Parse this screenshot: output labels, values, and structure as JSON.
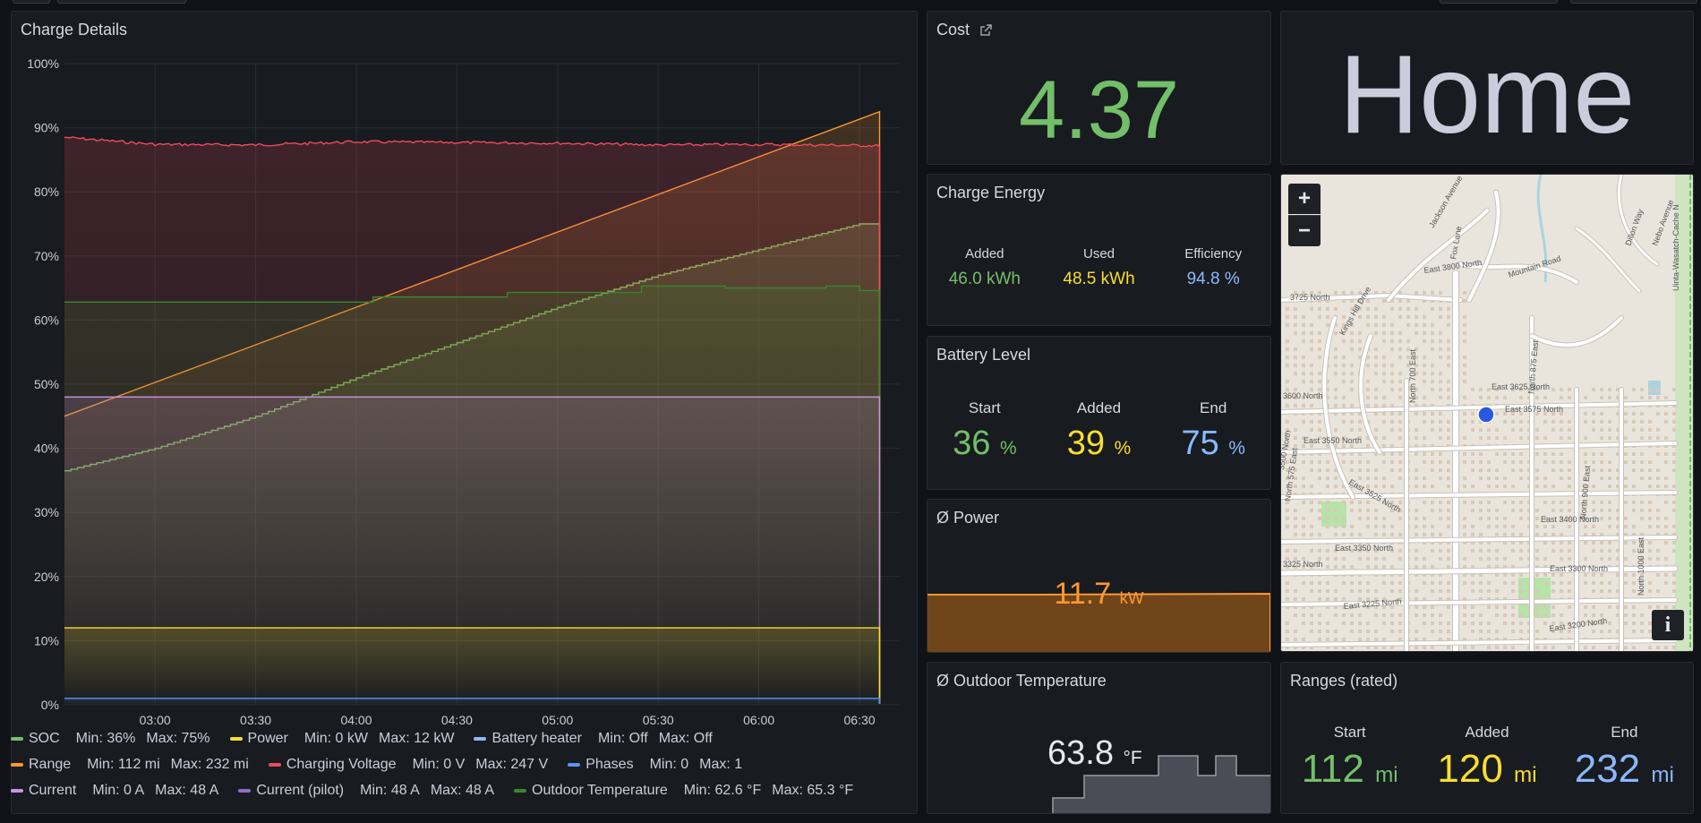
{
  "charge_details": {
    "title": "Charge Details",
    "legend": [
      {
        "name": "SOC",
        "color": "#73bf69",
        "min": "Min: 36%",
        "max": "Max: 75%"
      },
      {
        "name": "Power",
        "color": "#fade2a",
        "min": "Min: 0 kW",
        "max": "Max: 12 kW"
      },
      {
        "name": "Battery heater",
        "color": "#8ab8ff",
        "min": "Min: Off",
        "max": "Max: Off"
      },
      {
        "name": "Range",
        "color": "#ff9830",
        "min": "Min: 112 mi",
        "max": "Max: 232 mi"
      },
      {
        "name": "Charging Voltage",
        "color": "#f2495c",
        "min": "Min: 0 V",
        "max": "Max: 247 V"
      },
      {
        "name": "Phases",
        "color": "#5794f2",
        "min": "Min: 0",
        "max": "Max: 1"
      },
      {
        "name": "Current",
        "color": "#ca95e5",
        "min": "Min: 0 A",
        "max": "Max: 48 A"
      },
      {
        "name": "Current (pilot)",
        "color": "#8f6fc7",
        "min": "Min: 48 A",
        "max": "Max: 48 A"
      },
      {
        "name": "Outdoor Temperature",
        "color": "#37872d",
        "min": "Min: 62.6 °F",
        "max": "Max: 65.3 °F"
      }
    ]
  },
  "chart_data": {
    "type": "line",
    "x_ticks": [
      "03:00",
      "03:30",
      "04:00",
      "04:30",
      "05:00",
      "05:30",
      "06:00",
      "06:30"
    ],
    "y_ticks": [
      "0%",
      "10%",
      "20%",
      "30%",
      "40%",
      "50%",
      "60%",
      "70%",
      "80%",
      "90%",
      "100%"
    ],
    "ylim": [
      0,
      100
    ],
    "x_range": [
      "02:33",
      "06:42"
    ],
    "series": [
      {
        "name": "SOC",
        "color": "#73bf69",
        "points": [
          [
            "02:33",
            36.5
          ],
          [
            "03:00",
            40
          ],
          [
            "03:30",
            45
          ],
          [
            "04:00",
            51
          ],
          [
            "04:30",
            56.5
          ],
          [
            "05:00",
            62
          ],
          [
            "05:30",
            67
          ],
          [
            "06:00",
            71
          ],
          [
            "06:30",
            75
          ],
          [
            "06:36",
            75
          ]
        ]
      },
      {
        "name": "Range",
        "color": "#ff9830",
        "points": [
          [
            "02:33",
            45
          ],
          [
            "06:36",
            92.5
          ]
        ]
      },
      {
        "name": "Charging Voltage",
        "color": "#f2495c",
        "points": [
          [
            "02:33",
            88.5
          ],
          [
            "03:00",
            87.4
          ],
          [
            "03:30",
            87.3
          ],
          [
            "04:00",
            87.8
          ],
          [
            "04:30",
            87.7
          ],
          [
            "05:00",
            87.6
          ],
          [
            "05:30",
            87.3
          ],
          [
            "06:00",
            87.4
          ],
          [
            "06:36",
            87.2
          ]
        ]
      },
      {
        "name": "Outdoor Temperature",
        "color": "#37872d",
        "points": [
          [
            "02:33",
            62.8
          ],
          [
            "04:00",
            62.8
          ],
          [
            "04:05",
            63.6
          ],
          [
            "04:45",
            64.3
          ],
          [
            "05:25",
            65.3
          ],
          [
            "05:50",
            65
          ],
          [
            "06:20",
            65.3
          ],
          [
            "06:30",
            64.6
          ],
          [
            "06:36",
            64.6
          ]
        ]
      },
      {
        "name": "Current",
        "color": "#ca95e5",
        "points": [
          [
            "02:33",
            48
          ],
          [
            "06:36",
            48
          ]
        ]
      },
      {
        "name": "Power",
        "color": "#fade2a",
        "points": [
          [
            "02:33",
            12
          ],
          [
            "06:36",
            12
          ]
        ]
      },
      {
        "name": "Phases",
        "color": "#5794f2",
        "points": [
          [
            "02:33",
            1
          ],
          [
            "06:36",
            1
          ]
        ]
      }
    ]
  },
  "cost": {
    "title": "Cost",
    "value": "4.37",
    "value_color": "#73bf69"
  },
  "location": {
    "value": "Home"
  },
  "charge_energy": {
    "title": "Charge Energy",
    "added_label": "Added",
    "added_value": "46.0",
    "added_unit": "kWh",
    "used_label": "Used",
    "used_value": "48.5",
    "used_unit": "kWh",
    "eff_label": "Efficiency",
    "eff_value": "94.8",
    "eff_unit": "%"
  },
  "battery_level": {
    "title": "Battery Level",
    "start_label": "Start",
    "start_value": "36",
    "start_unit": "%",
    "added_label": "Added",
    "added_value": "39",
    "added_unit": "%",
    "end_label": "End",
    "end_value": "75",
    "end_unit": "%"
  },
  "power": {
    "title": "Ø Power",
    "value": "11.7",
    "unit": "kW"
  },
  "outdoor_temp": {
    "title": "Ø Outdoor Temperature",
    "value": "63.8",
    "unit": "°F"
  },
  "ranges": {
    "title": "Ranges (rated)",
    "start_label": "Start",
    "start_value": "112",
    "start_unit": "mi",
    "added_label": "Added",
    "added_value": "120",
    "added_unit": "mi",
    "end_label": "End",
    "end_value": "232",
    "end_unit": "mi"
  },
  "map": {
    "zoom_in": "+",
    "zoom_out": "−",
    "info": "i",
    "labels": [
      "3725 North",
      "East 3800 North",
      "Mountain Road",
      "Jackson Avenue",
      "Kings Hill Drive",
      "Fox Lane",
      "East 3625 North",
      "East 3575 North",
      "East 3550 North",
      "East 3525 North",
      "North 700 East",
      "North 875 East",
      "North 900 East",
      "East 3400 North",
      "East 3350 North",
      "East 3300 North",
      "East 3225 North",
      "East 3200 North",
      "3600 North",
      "3500 North",
      "3325 North",
      "North 575 East",
      "North 1000 East",
      "Dillon Way",
      "Nebo Avenue",
      "Uinta-Wasatch-Cache N"
    ]
  }
}
